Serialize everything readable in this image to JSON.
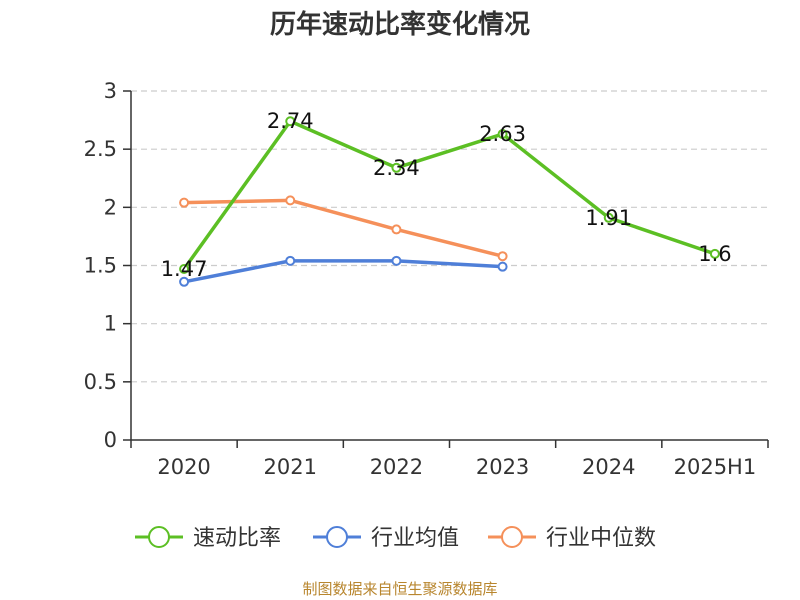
{
  "chart_data": {
    "type": "line",
    "title": "历年速动比率变化情况",
    "categories": [
      "2020",
      "2021",
      "2022",
      "2023",
      "2024",
      "2025H1"
    ],
    "ylim": [
      0,
      3
    ],
    "yticks": [
      "0",
      "0.5",
      "1",
      "1.5",
      "2",
      "2.5",
      "3"
    ],
    "grid": true,
    "legend_position": "bottom",
    "series": [
      {
        "name": "速动比率",
        "color": "#5cbf24",
        "values": [
          1.47,
          2.74,
          2.34,
          2.63,
          1.91,
          1.6
        ],
        "labels": [
          "1.47",
          "2.74",
          "2.34",
          "2.63",
          "1.91",
          "1.6"
        ]
      },
      {
        "name": "行业均值",
        "color": "#4f7fd8",
        "values": [
          1.36,
          1.54,
          1.54,
          1.49,
          null,
          null
        ]
      },
      {
        "name": "行业中位数",
        "color": "#f5905a",
        "values": [
          2.04,
          2.06,
          1.81,
          1.58,
          null,
          null
        ]
      }
    ],
    "source": "制图数据来自恒生聚源数据库"
  }
}
